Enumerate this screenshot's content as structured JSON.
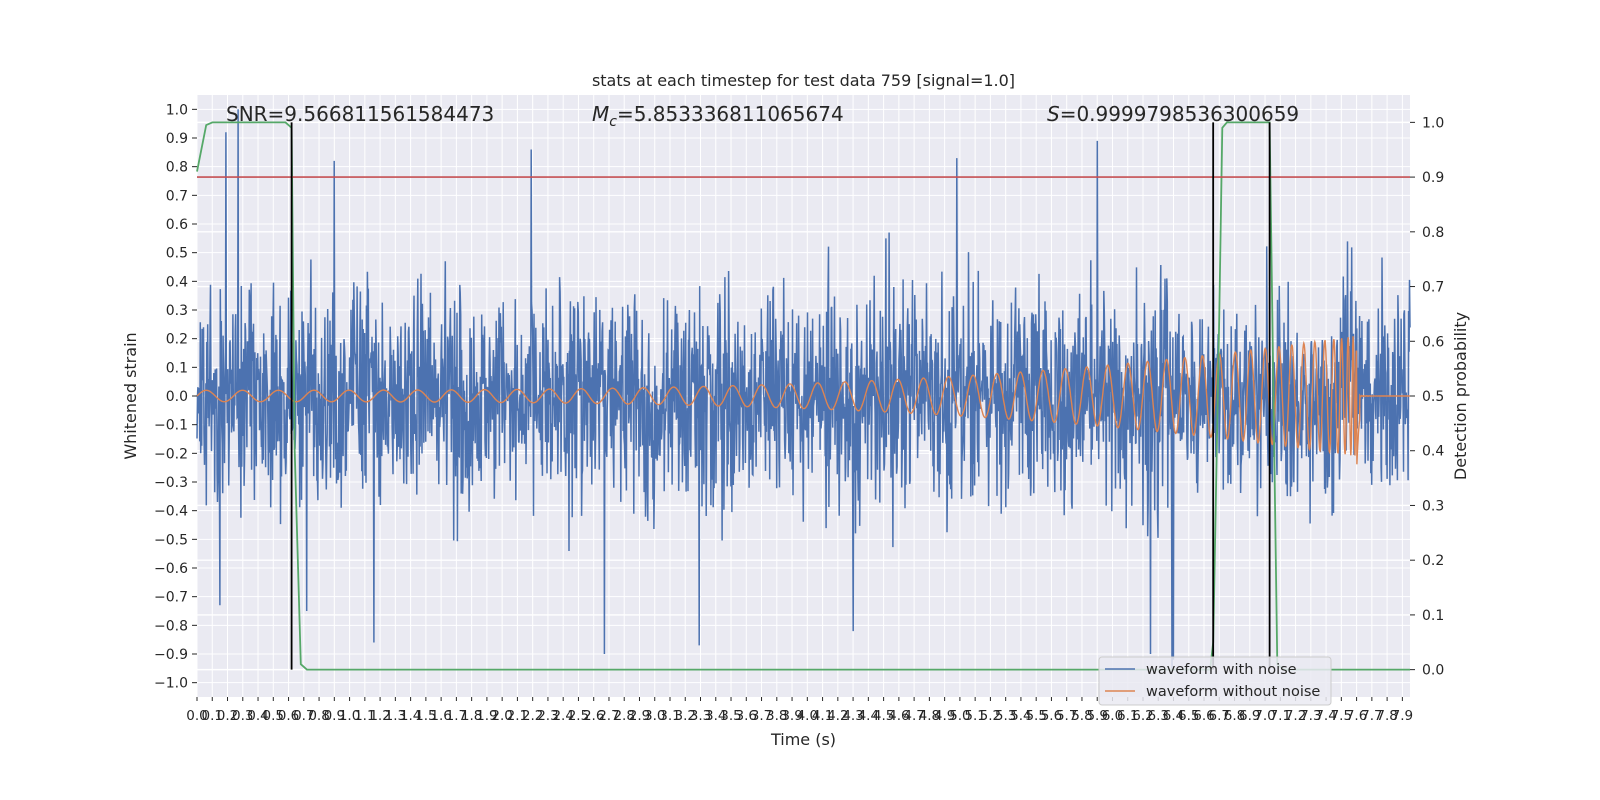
{
  "chart_data": {
    "type": "line",
    "title": "stats at each timestep for test data 759 [signal=1.0]",
    "xlabel": "Time (s)",
    "ylabel": "Whitened strain",
    "ylabel_right": "Detection probability",
    "xlim": [
      0.0,
      7.95
    ],
    "ylim": [
      -1.05,
      1.05
    ],
    "ylim_right": [
      -0.05,
      1.05
    ],
    "grid": true,
    "legend_position": "lower-right",
    "x_ticks": [
      "0.0",
      "0.1",
      "0.2",
      "0.3",
      "0.4",
      "0.5",
      "0.6",
      "0.7",
      "0.8",
      "0.9",
      "1.0",
      "1.1",
      "1.2",
      "1.3",
      "1.4",
      "1.5",
      "1.6",
      "1.7",
      "1.8",
      "1.9",
      "2.0",
      "2.1",
      "2.2",
      "2.3",
      "2.4",
      "2.5",
      "2.6",
      "2.7",
      "2.8",
      "2.9",
      "3.0",
      "3.1",
      "3.2",
      "3.3",
      "3.4",
      "3.5",
      "3.6",
      "3.7",
      "3.8",
      "3.9",
      "4.0",
      "4.1",
      "4.2",
      "4.3",
      "4.4",
      "4.5",
      "4.6",
      "4.7",
      "4.8",
      "4.9",
      "5.0",
      "5.1",
      "5.2",
      "5.3",
      "5.4",
      "5.5",
      "5.6",
      "5.7",
      "5.8",
      "5.9",
      "6.0",
      "6.1",
      "6.2",
      "6.3",
      "6.4",
      "6.5",
      "6.6",
      "6.7",
      "6.8",
      "6.9",
      "7.0",
      "7.1",
      "7.2",
      "7.3",
      "7.4",
      "7.5",
      "7.6",
      "7.7",
      "7.8",
      "7.9"
    ],
    "y_ticks_left": [
      "−1.0",
      "−0.9",
      "−0.8",
      "−0.7",
      "−0.6",
      "−0.5",
      "−0.4",
      "−0.3",
      "−0.2",
      "−0.1",
      "0.0",
      "0.1",
      "0.2",
      "0.3",
      "0.4",
      "0.5",
      "0.6",
      "0.7",
      "0.8",
      "0.9",
      "1.0"
    ],
    "y_ticks_right": [
      "0.0",
      "0.1",
      "0.2",
      "0.3",
      "0.4",
      "0.5",
      "0.6",
      "0.7",
      "0.8",
      "0.9",
      "1.0"
    ],
    "annotations": {
      "snr": "SNR=9.566811561584473",
      "mc": "=5.853336811065674",
      "mc_symbol": "M",
      "mc_sub": "c",
      "s": "=0.9999798536300659",
      "s_symbol": "S"
    },
    "threshold": {
      "value": 0.9,
      "axis": "right",
      "color": "#c44e52"
    },
    "vertical_markers": [
      0.62,
      6.66,
      7.03
    ],
    "series": [
      {
        "name": "waveform with noise",
        "color": "#4c72b0",
        "axis": "left",
        "kind": "noise",
        "std": 0.25,
        "clip": 1.0,
        "peaks": [
          [
            0.27,
            1.0
          ],
          [
            0.19,
            0.92
          ],
          [
            2.19,
            0.86
          ],
          [
            5.9,
            0.89
          ],
          [
            4.98,
            0.83
          ],
          [
            0.9,
            0.82
          ],
          [
            2.67,
            -0.9
          ],
          [
            0.15,
            -0.73
          ],
          [
            0.72,
            -0.75
          ],
          [
            1.16,
            -0.86
          ],
          [
            3.29,
            -0.87
          ],
          [
            6.39,
            -0.95
          ],
          [
            4.3,
            -0.82
          ],
          [
            6.25,
            -0.9
          ],
          [
            6.4,
            -0.92
          ]
        ]
      },
      {
        "name": "waveform without noise",
        "color": "#dd8452",
        "axis": "left",
        "kind": "chirp",
        "amp_start": 0.02,
        "amp_end": 0.21,
        "t_merger": 7.6,
        "ringdown_depth": -0.27
      },
      {
        "name": "",
        "color": "#55a868",
        "axis": "right",
        "kind": "probability",
        "x": [
          0.0,
          0.06,
          0.1,
          0.15,
          0.2,
          0.25,
          0.3,
          0.4,
          0.5,
          0.58,
          0.62,
          0.64,
          0.68,
          0.72,
          0.8,
          1.0,
          2.0,
          3.0,
          4.0,
          5.0,
          6.0,
          6.5,
          6.6,
          6.64,
          6.66,
          6.7,
          6.72,
          6.75,
          6.8,
          6.9,
          7.0,
          7.03,
          7.05,
          7.08,
          7.12,
          7.2,
          7.5,
          7.95
        ],
        "y": [
          0.91,
          0.995,
          1.0,
          1.0,
          1.0,
          1.0,
          1.0,
          1.0,
          1.0,
          1.0,
          0.99,
          0.4,
          0.01,
          0.0,
          0.0,
          0.0,
          0.0,
          0.0,
          0.0,
          0.0,
          0.0,
          0.0,
          0.0,
          0.0,
          0.05,
          0.65,
          0.99,
          1.0,
          1.0,
          1.0,
          1.0,
          1.0,
          0.6,
          0.01,
          0.0,
          0.0,
          0.0,
          0.0
        ]
      }
    ]
  }
}
